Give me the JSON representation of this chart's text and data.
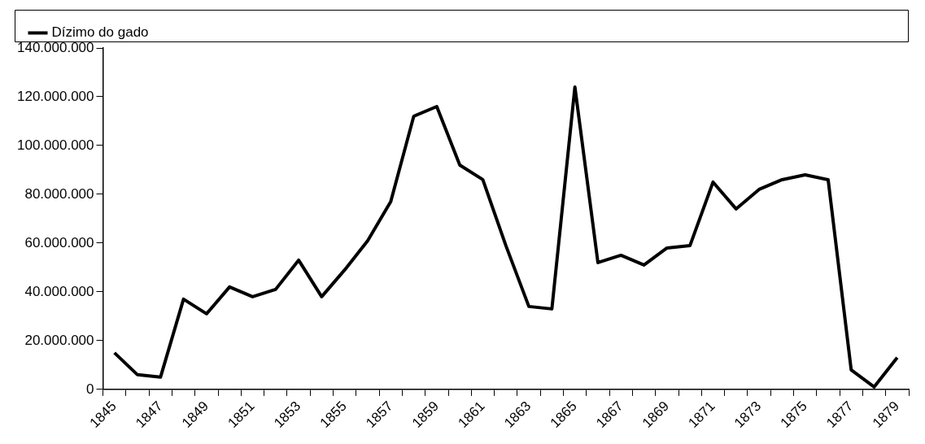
{
  "chart_data": {
    "type": "line",
    "categories": [
      "1845",
      null,
      "1847",
      null,
      "1849",
      null,
      "1851",
      null,
      "1853",
      null,
      "1855",
      null,
      "1857",
      null,
      "1859",
      null,
      "1861",
      null,
      "1863",
      null,
      "1865",
      null,
      "1867",
      null,
      "1869",
      null,
      "1871",
      null,
      "1873",
      null,
      "1875",
      null,
      "1877",
      null,
      "1879"
    ],
    "series": [
      {
        "name": "Dízimo do gado",
        "color": "#000000",
        "values": [
          15000000,
          6000000,
          5000000,
          37000000,
          31000000,
          42000000,
          38000000,
          41000000,
          53000000,
          38000000,
          49000000,
          61000000,
          77000000,
          112000000,
          116000000,
          92000000,
          86000000,
          59000000,
          34000000,
          33000000,
          124000000,
          52000000,
          55000000,
          51000000,
          58000000,
          59000000,
          85000000,
          74000000,
          82000000,
          86000000,
          88000000,
          86000000,
          8000000,
          1000000,
          13000000
        ]
      }
    ],
    "ylim": [
      0,
      140000000
    ],
    "yticks": [
      {
        "value": 0,
        "label": "0"
      },
      {
        "value": 20000000,
        "label": "20.000.000"
      },
      {
        "value": 40000000,
        "label": "40.000.000"
      },
      {
        "value": 60000000,
        "label": "60.000.000"
      },
      {
        "value": 80000000,
        "label": "80.000.000"
      },
      {
        "value": 100000000,
        "label": "100.000.000"
      },
      {
        "value": 120000000,
        "label": "120.000.000"
      },
      {
        "value": 140000000,
        "label": "140.000.000"
      }
    ],
    "grid": false,
    "legend": "top left",
    "marker": "none",
    "line_style": "solid"
  }
}
